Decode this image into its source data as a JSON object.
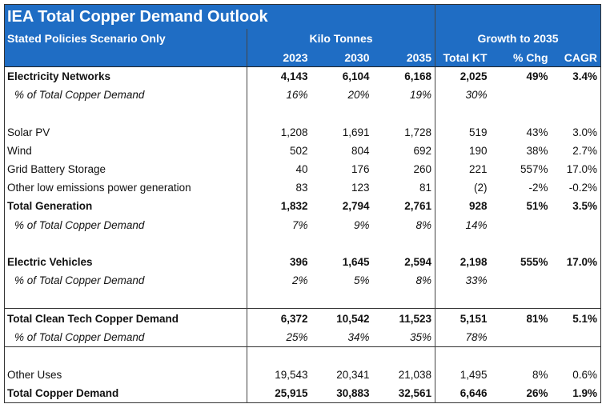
{
  "title": "IEA Total Copper Demand Outlook",
  "subtitle": "Stated Policies Scenario Only",
  "group_kilo": "Kilo Tonnes",
  "group_growth": "Growth to 2035",
  "columns": [
    "2023",
    "2030",
    "2035",
    "Total KT",
    "% Chg",
    "CAGR"
  ],
  "colors": {
    "header_bg": "#1f6dc4",
    "header_text": "#ffffff"
  },
  "rows": [
    {
      "type": "bold",
      "label": "Electricity Networks",
      "values": [
        "4,143",
        "6,104",
        "6,168",
        "2,025",
        "49%",
        "3.4%"
      ]
    },
    {
      "type": "italic",
      "label": "% of Total Copper Demand",
      "values": [
        "16%",
        "20%",
        "19%",
        "30%",
        "",
        ""
      ]
    },
    {
      "type": "blank",
      "label": "",
      "values": [
        "",
        "",
        "",
        "",
        "",
        ""
      ]
    },
    {
      "type": "normal",
      "label": "Solar PV",
      "values": [
        "1,208",
        "1,691",
        "1,728",
        "519",
        "43%",
        "3.0%"
      ]
    },
    {
      "type": "normal",
      "label": "Wind",
      "values": [
        "502",
        "804",
        "692",
        "190",
        "38%",
        "2.7%"
      ]
    },
    {
      "type": "normal",
      "label": "Grid Battery Storage",
      "values": [
        "40",
        "176",
        "260",
        "221",
        "557%",
        "17.0%"
      ]
    },
    {
      "type": "normal",
      "label": "Other low emissions power generation",
      "values": [
        "83",
        "123",
        "81",
        "(2)",
        "-2%",
        "-0.2%"
      ]
    },
    {
      "type": "bold",
      "label": "Total Generation",
      "values": [
        "1,832",
        "2,794",
        "2,761",
        "928",
        "51%",
        "3.5%"
      ]
    },
    {
      "type": "italic",
      "label": "% of Total Copper Demand",
      "values": [
        "7%",
        "9%",
        "8%",
        "14%",
        "",
        ""
      ]
    },
    {
      "type": "blank",
      "label": "",
      "values": [
        "",
        "",
        "",
        "",
        "",
        ""
      ]
    },
    {
      "type": "bold",
      "label": "Electric Vehicles",
      "values": [
        "396",
        "1,645",
        "2,594",
        "2,198",
        "555%",
        "17.0%"
      ]
    },
    {
      "type": "italic",
      "label": "% of Total Copper Demand",
      "values": [
        "2%",
        "5%",
        "8%",
        "33%",
        "",
        ""
      ]
    },
    {
      "type": "blank",
      "label": "",
      "values": [
        "",
        "",
        "",
        "",
        "",
        ""
      ]
    },
    {
      "type": "bold topline",
      "label": "Total Clean Tech Copper Demand",
      "values": [
        "6,372",
        "10,542",
        "11,523",
        "5,151",
        "81%",
        "5.1%"
      ]
    },
    {
      "type": "italic",
      "label": "% of Total Copper Demand",
      "values": [
        "25%",
        "34%",
        "35%",
        "78%",
        "",
        ""
      ]
    },
    {
      "type": "blank topline",
      "label": "",
      "values": [
        "",
        "",
        "",
        "",
        "",
        ""
      ]
    },
    {
      "type": "normal",
      "label": "Other Uses",
      "values": [
        "19,543",
        "20,341",
        "21,038",
        "1,495",
        "8%",
        "0.6%"
      ]
    },
    {
      "type": "bold",
      "label": "Total Copper Demand",
      "values": [
        "25,915",
        "30,883",
        "32,561",
        "6,646",
        "26%",
        "1.9%"
      ]
    }
  ]
}
